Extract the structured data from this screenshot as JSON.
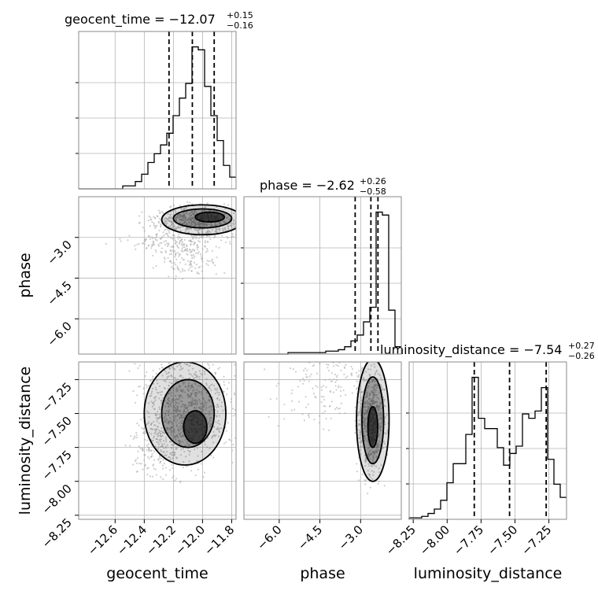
{
  "chart_data": {
    "type": "corner",
    "parameters": [
      {
        "name": "geocent_time",
        "label": "geocent_time",
        "median": -12.07,
        "plus": 0.15,
        "minus": 0.16,
        "title_main": "geocent_time = −12.07",
        "title_sup": "+0.15",
        "title_sub": "−0.16",
        "range": [
          -12.85,
          -11.77
        ],
        "ticks": [
          -12.6,
          -12.4,
          -12.2,
          -12.0,
          -11.8
        ],
        "tick_labels": [
          "−12.6",
          "−12.4",
          "−12.2",
          "−12.0",
          "−11.8"
        ],
        "quantiles": [
          -12.23,
          -12.07,
          -11.92
        ]
      },
      {
        "name": "phase",
        "label": "phase",
        "median": -2.62,
        "plus": 0.26,
        "minus": 0.58,
        "title_main": "phase = −2.62",
        "title_sup": "+0.26",
        "title_sub": "−0.58",
        "range": [
          -7.3,
          -1.5
        ],
        "ticks": [
          -6.0,
          -4.5,
          -3.0
        ],
        "tick_labels": [
          "−6.0",
          "−4.5",
          "−3.0"
        ],
        "quantiles": [
          -3.2,
          -2.62,
          -2.36
        ]
      },
      {
        "name": "luminosity_distance",
        "label": "luminosity_distance",
        "median": -7.54,
        "plus": 0.27,
        "minus": 0.26,
        "title_main": "luminosity_distance = −7.54",
        "title_sup": "+0.27",
        "title_sub": "−0.26",
        "range": [
          -8.28,
          -7.12
        ],
        "ticks": [
          -8.25,
          -8.0,
          -7.75,
          -7.5,
          -7.25
        ],
        "tick_labels": [
          "−8.25",
          "−8.00",
          "−7.75",
          "−7.50",
          "−7.25"
        ],
        "quantiles": [
          -7.8,
          -7.54,
          -7.27
        ]
      }
    ],
    "histograms": {
      "geocent_time": [
        0,
        0,
        0,
        0,
        0,
        0,
        0,
        0.02,
        0.02,
        0.05,
        0.1,
        0.18,
        0.24,
        0.3,
        0.38,
        0.5,
        0.62,
        0.72,
        0.97,
        0.95,
        0.7,
        0.5,
        0.33,
        0.16,
        0.08
      ],
      "phase": [
        0,
        0,
        0,
        0,
        0,
        0,
        0,
        0.01,
        0.01,
        0.01,
        0.01,
        0.01,
        0.01,
        0.02,
        0.02,
        0.03,
        0.05,
        0.09,
        0.13,
        0.22,
        0.32,
        0.97,
        0.95,
        0.3,
        0.05
      ],
      "luminosity_distance": [
        0.01,
        0.01,
        0.02,
        0.04,
        0.07,
        0.13,
        0.25,
        0.38,
        0.38,
        0.58,
        0.97,
        0.69,
        0.62,
        0.62,
        0.49,
        0.37,
        0.45,
        0.5,
        0.72,
        0.69,
        0.74,
        0.9,
        0.41,
        0.24,
        0.15
      ]
    },
    "panels": [
      {
        "row": 1,
        "col": 0,
        "x": "geocent_time",
        "y": "phase"
      },
      {
        "row": 2,
        "col": 0,
        "x": "geocent_time",
        "y": "luminosity_distance"
      },
      {
        "row": 2,
        "col": 1,
        "x": "phase",
        "y": "luminosity_distance"
      }
    ],
    "grid": true
  }
}
